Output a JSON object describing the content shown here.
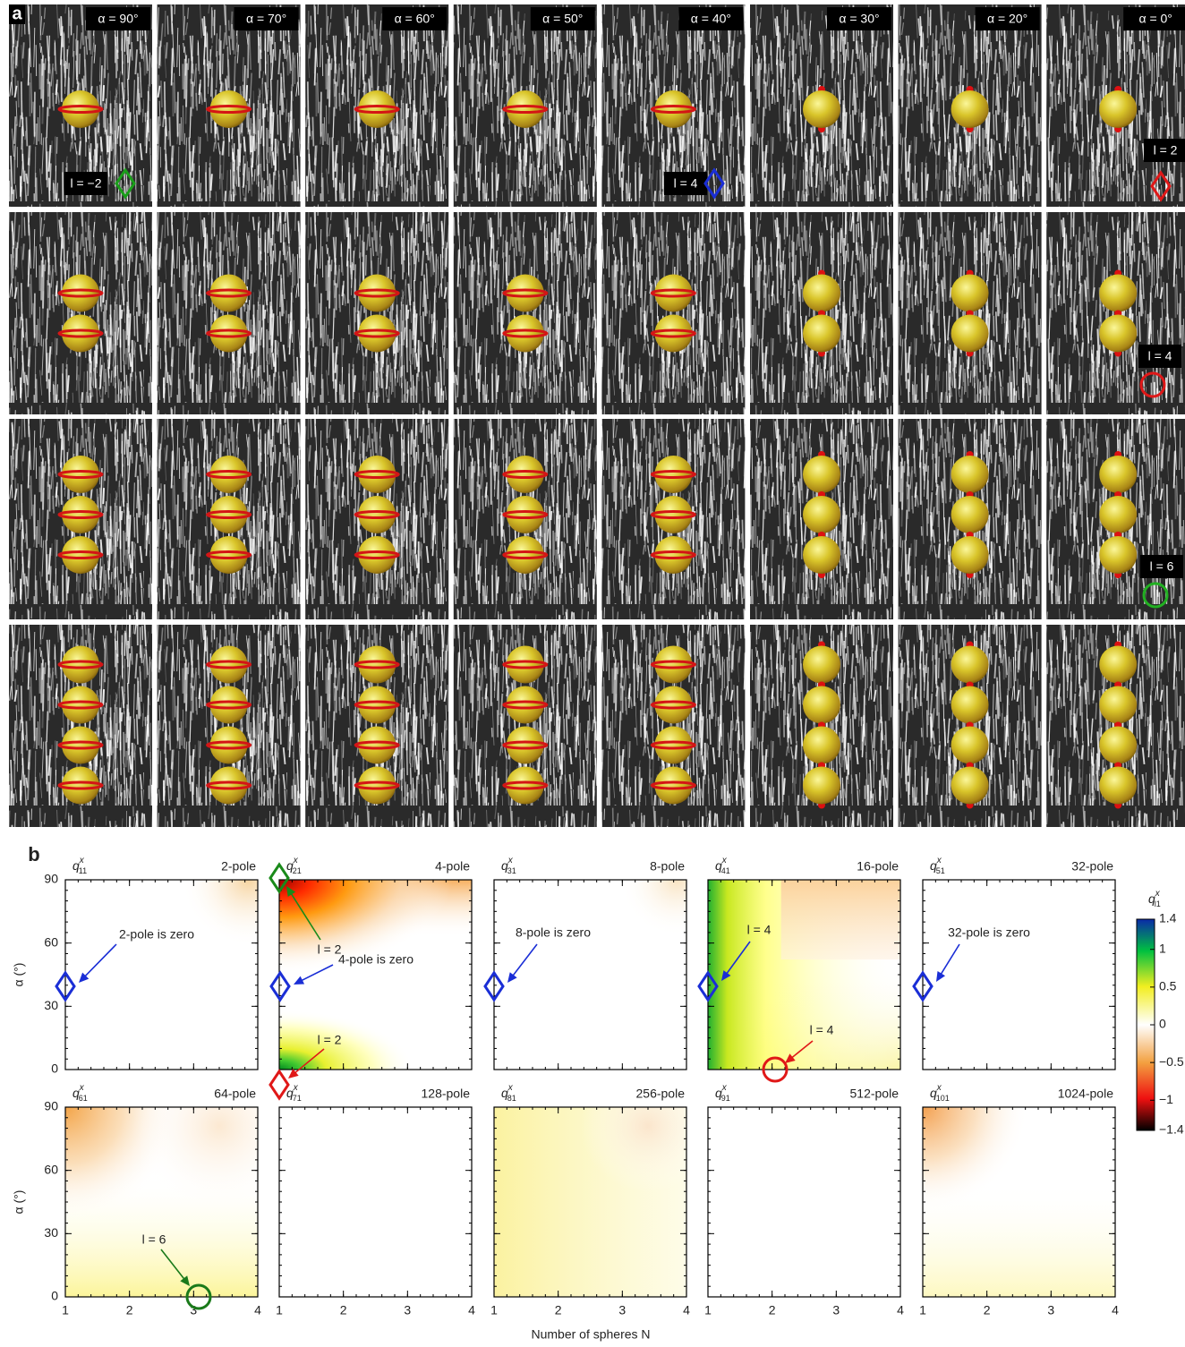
{
  "panel_a": {
    "label": "a",
    "angles": [
      "α = 90°",
      "α = 70°",
      "α = 60°",
      "α = 50°",
      "α = 40°",
      "α = 30°",
      "α = 20°",
      "α = 0°"
    ],
    "markers": [
      "l = −2",
      "l = 4",
      "l = 2",
      "l = 4",
      "l = 6"
    ]
  },
  "panel_b": {
    "label": "b",
    "xlabel": "Number of spheres N",
    "ylabel": "α (°)",
    "xlim": [
      1,
      4
    ],
    "ylim": [
      0,
      90
    ],
    "xticks": [
      1,
      2,
      3,
      4
    ],
    "yticks": [
      0,
      30,
      60,
      90
    ],
    "maps": [
      {
        "symbol": "q",
        "sup": "x",
        "sub": "11",
        "name": "2-pole"
      },
      {
        "symbol": "q",
        "sup": "x",
        "sub": "21",
        "name": "4-pole"
      },
      {
        "symbol": "q",
        "sup": "x",
        "sub": "31",
        "name": "8-pole"
      },
      {
        "symbol": "q",
        "sup": "x",
        "sub": "41",
        "name": "16-pole"
      },
      {
        "symbol": "q",
        "sup": "x",
        "sub": "51",
        "name": "32-pole"
      },
      {
        "symbol": "q",
        "sup": "x",
        "sub": "61",
        "name": "64-pole"
      },
      {
        "symbol": "q",
        "sup": "x",
        "sub": "71",
        "name": "128-pole"
      },
      {
        "symbol": "q",
        "sup": "x",
        "sub": "81",
        "name": "256-pole"
      },
      {
        "symbol": "q",
        "sup": "x",
        "sub": "91",
        "name": "512-pole"
      },
      {
        "symbol": "q",
        "sup": "x",
        "sub": "101",
        "name": "1024-pole"
      }
    ],
    "colorbar": {
      "symbol": "q",
      "sup": "x",
      "sub": "l1",
      "lim": [
        -1.4,
        1.4
      ],
      "ticks": [
        1.4,
        1,
        0.5,
        0,
        {
          "value": -0.5,
          "label": "−0.5"
        },
        {
          "value": -1,
          "label": "−1"
        },
        {
          "value": -1.4,
          "label": "−1.4"
        }
      ]
    },
    "annotations": [
      "2-pole is zero",
      "4-pole is zero",
      "l = 2",
      "l = 2",
      "8-pole is zero",
      "l = 4",
      "l = 4",
      "32-pole is zero",
      "l = 6"
    ]
  }
}
